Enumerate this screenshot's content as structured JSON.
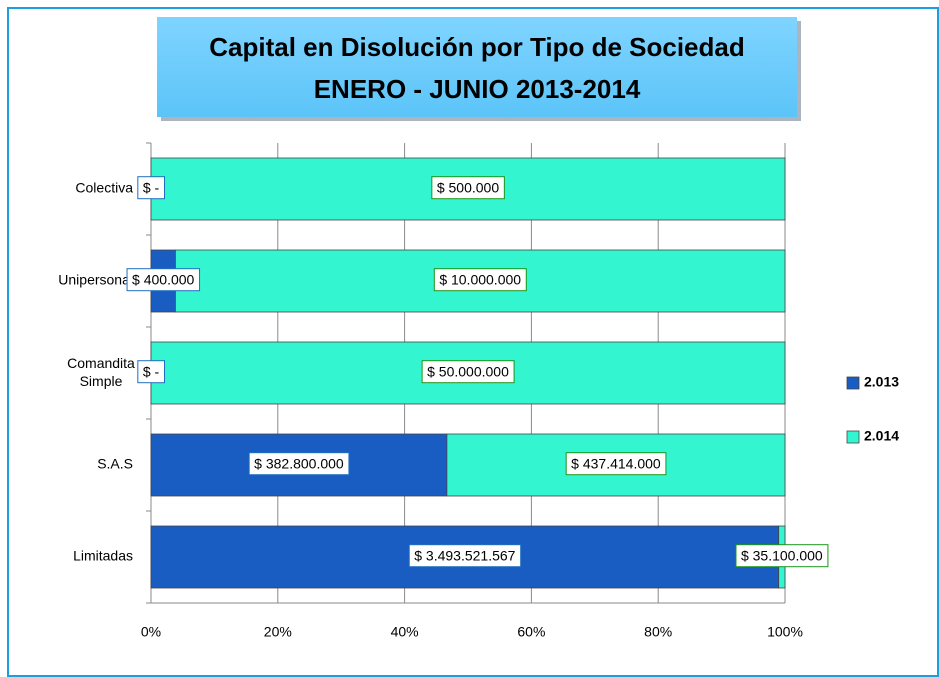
{
  "chart_data": {
    "type": "bar",
    "orientation": "horizontal",
    "stacking": "percent",
    "title": [
      "Capital en Disolución por Tipo de Sociedad",
      "ENERO - JUNIO 2013-2014"
    ],
    "categories": [
      "Colectiva",
      "Unipersonal",
      "Comandita Simple",
      "S.A.S",
      "Limitadas"
    ],
    "series": [
      {
        "name": "2.013",
        "color": "#1a5dc2",
        "label_color": "#1f6fc0",
        "values": [
          0,
          400000,
          0,
          382800000,
          3493521567
        ],
        "value_labels": [
          "$ -",
          "$ 400.000",
          "$ -",
          "$ 382.800.000",
          "$ 3.493.521.567"
        ]
      },
      {
        "name": "2.014",
        "color": "#33f5d0",
        "label_color": "#1a951a",
        "values": [
          500000,
          10000000,
          50000000,
          437414000,
          35100000
        ],
        "value_labels": [
          "$ 500.000",
          "$ 10.000.000",
          "$ 50.000.000",
          "$ 437.414.000",
          "$ 35.100.000"
        ]
      }
    ],
    "xlim": [
      0,
      100
    ],
    "xticks": [
      {
        "value": 0,
        "label": "0%"
      },
      {
        "value": 20,
        "label": "20%"
      },
      {
        "value": 40,
        "label": "40%"
      },
      {
        "value": 60,
        "label": "60%"
      },
      {
        "value": 80,
        "label": "80%"
      },
      {
        "value": 100,
        "label": "100%"
      }
    ],
    "grid": true,
    "legend": "right"
  }
}
